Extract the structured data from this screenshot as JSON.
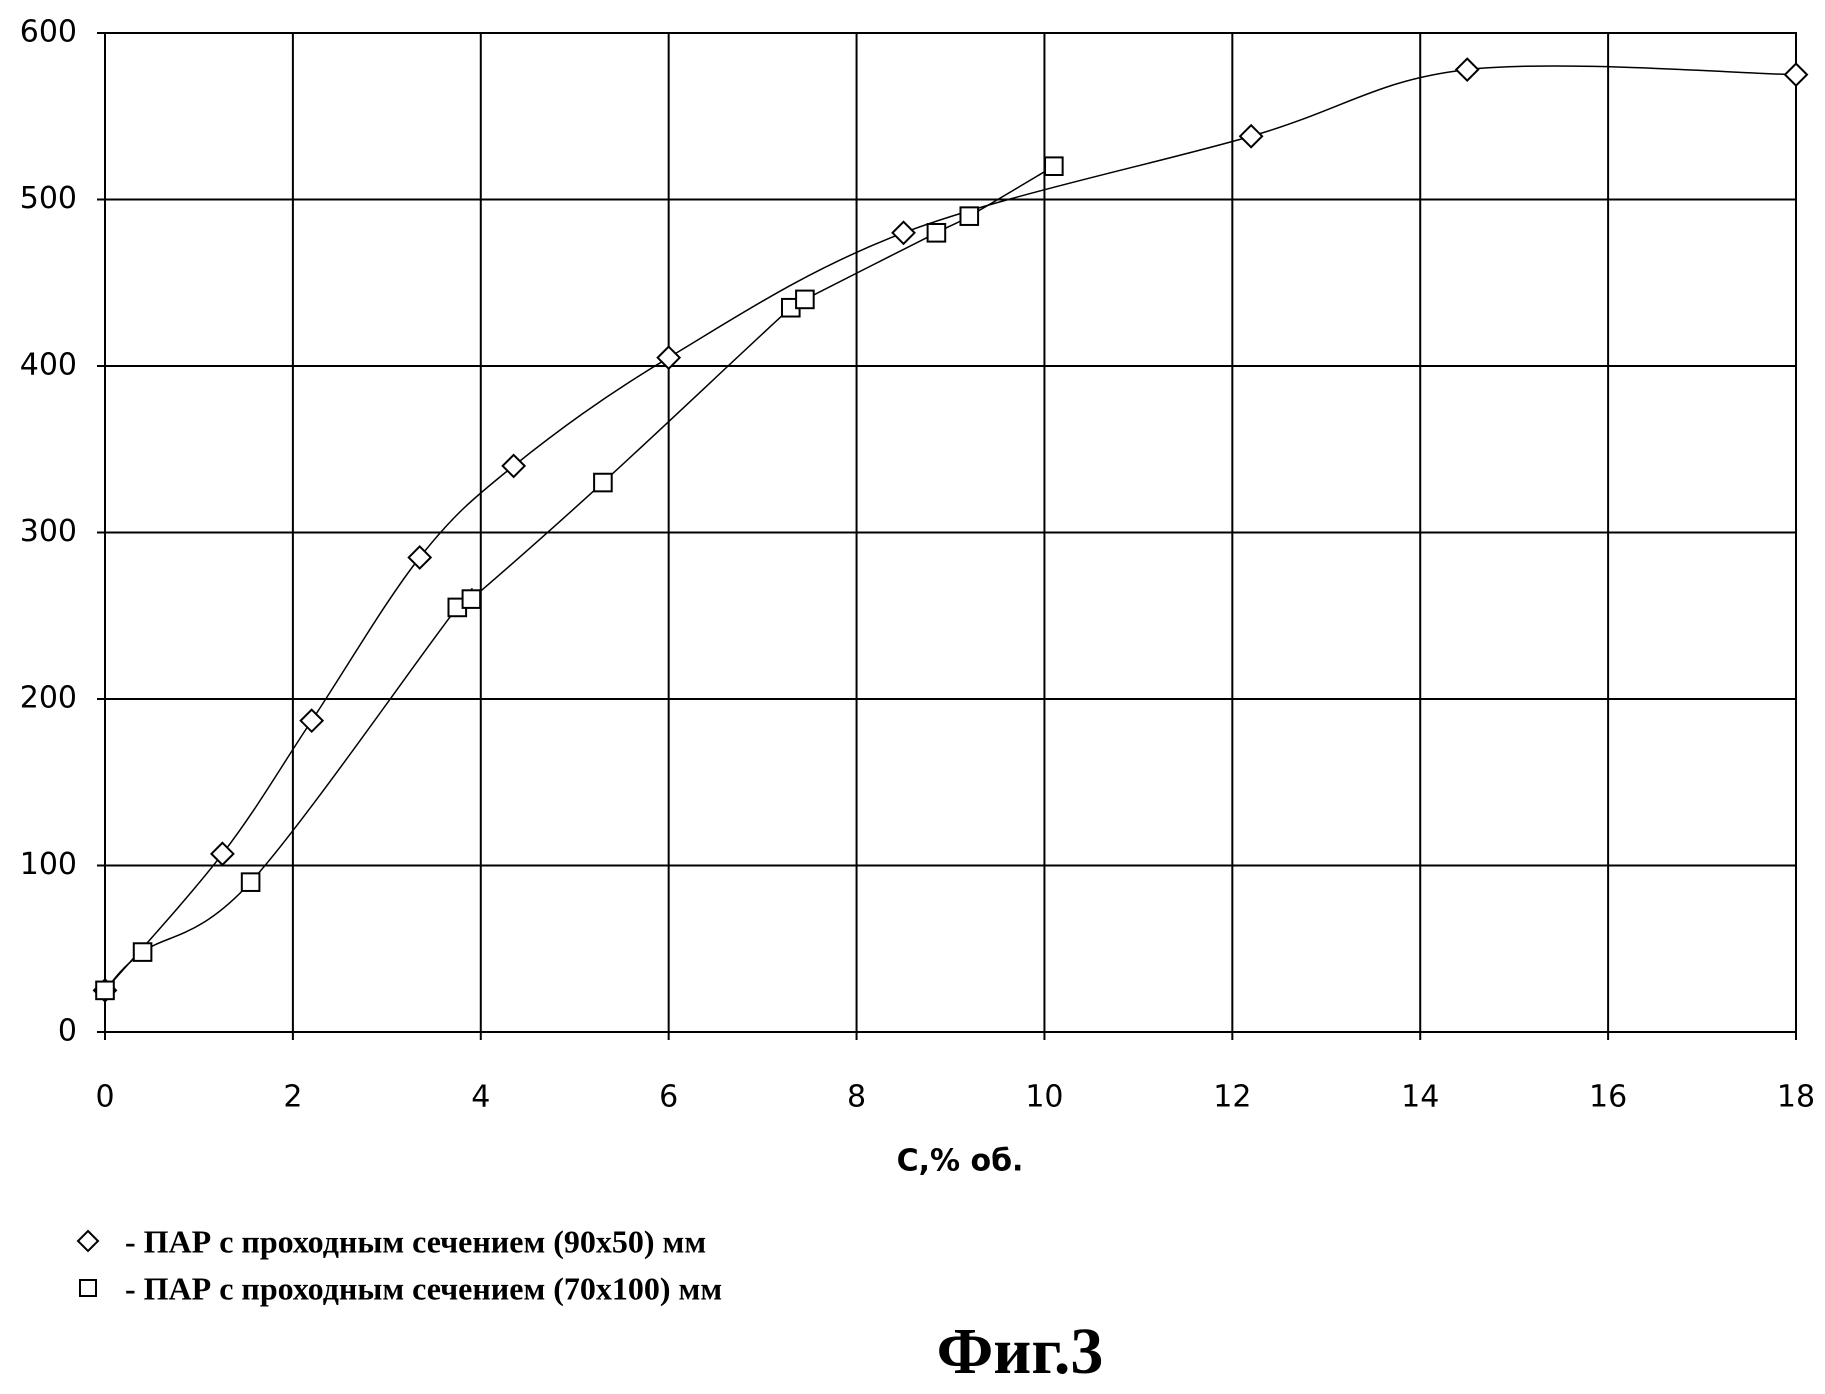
{
  "chart_data": {
    "type": "scatter",
    "smooth": true,
    "grid": true,
    "xlabel": "С,% об.",
    "caption": "Фиг.3",
    "xlim": [
      0,
      18
    ],
    "xticks": [
      0,
      2,
      4,
      6,
      8,
      10,
      12,
      14,
      16,
      18
    ],
    "ylim": [
      0,
      600
    ],
    "yticks": [
      0,
      100,
      200,
      300,
      400,
      500,
      600
    ],
    "series": [
      {
        "name": "- ПАР с проходным сечением (90х50) мм",
        "marker": "diamond",
        "color": "#000000",
        "x": [
          0,
          1.25,
          2.2,
          3.35,
          4.35,
          6,
          8.5,
          12.2,
          14.5,
          18
        ],
        "values": [
          25,
          107,
          187,
          285,
          340,
          405,
          480,
          538,
          578,
          575
        ]
      },
      {
        "name": "- ПАР с проходным сечением (70х100) мм",
        "marker": "square",
        "color": "#000000",
        "x": [
          0,
          0.4,
          1.55,
          3.75,
          3.9,
          5.3,
          7.3,
          7.45,
          8.85,
          9.2,
          10.1
        ],
        "values": [
          25,
          48,
          90,
          255,
          260,
          330,
          435,
          440,
          480,
          490,
          520
        ]
      }
    ]
  }
}
